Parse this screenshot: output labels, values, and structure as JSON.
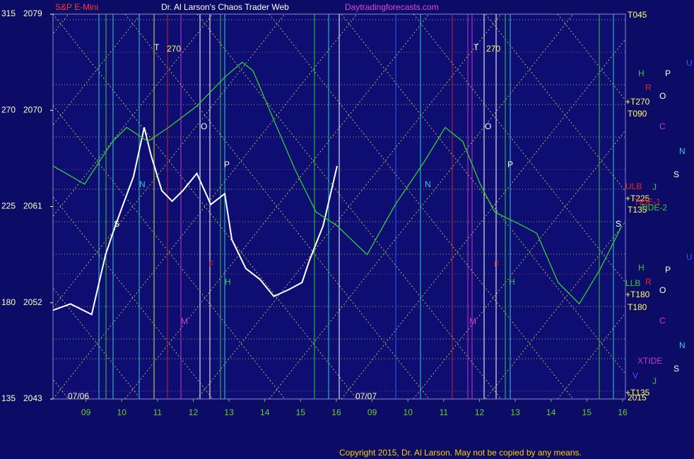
{
  "chart_data": {
    "type": "line",
    "header": {
      "symbol": "S&P E-Mini",
      "title": "Dr. Al Larson's Chaos Trader Web",
      "site": "Daytradingforecasts.com"
    },
    "xlim": [
      0.08,
      16.08
    ],
    "xticks": [
      {
        "value": 1,
        "label": "09"
      },
      {
        "value": 2,
        "label": "10"
      },
      {
        "value": 3,
        "label": "11"
      },
      {
        "value": 4,
        "label": "12"
      },
      {
        "value": 5,
        "label": "13"
      },
      {
        "value": 6,
        "label": "14"
      },
      {
        "value": 7,
        "label": "15"
      },
      {
        "value": 8,
        "label": "16"
      },
      {
        "value": 9,
        "label": "09"
      },
      {
        "value": 10,
        "label": "10"
      },
      {
        "value": 11,
        "label": "11"
      },
      {
        "value": 12,
        "label": "12"
      },
      {
        "value": 13,
        "label": "13"
      },
      {
        "value": 14,
        "label": "14"
      },
      {
        "value": 15,
        "label": "15"
      },
      {
        "value": 16,
        "label": "16"
      }
    ],
    "dates": [
      "07/06",
      "07/07"
    ],
    "ylim": [
      2043,
      2079
    ],
    "yticks": [
      2043,
      2052,
      2061,
      2070,
      2079
    ],
    "y2lim": [
      135,
      315
    ],
    "y2ticks": [
      135,
      180,
      225,
      270,
      315
    ],
    "series": [
      {
        "color": "#ffffff",
        "x": [
          0.08,
          0.57,
          1.16,
          1.55,
          1.75,
          2.04,
          2.33,
          2.63,
          2.82,
          3.12,
          3.41,
          3.71,
          4.1,
          4.49,
          4.88,
          5.08,
          5.47,
          5.86,
          6.25,
          6.65,
          7.04,
          7.24,
          7.63,
          8.02
        ],
        "values": [
          2051.3,
          2051.9,
          2050.9,
          2056.5,
          2058.5,
          2061.2,
          2063.8,
          2068.4,
          2065.8,
          2062.5,
          2061.5,
          2062.5,
          2064.1,
          2061.2,
          2062.2,
          2057.9,
          2055.2,
          2054.2,
          2052.6,
          2053.2,
          2053.9,
          2055.9,
          2059.2,
          2064.8
        ]
      },
      {
        "color": "#33cc33",
        "x": [
          0.08,
          0.96,
          1.75,
          2.14,
          2.73,
          3.31,
          4.1,
          4.88,
          5.37,
          5.67,
          6.25,
          6.84,
          7.43,
          8.02,
          8.86,
          9.65,
          10.44,
          11.04,
          11.53,
          12.02,
          12.42,
          13.21,
          13.6,
          14.2,
          14.79,
          15.38,
          15.98
        ],
        "values": [
          2064.8,
          2063.1,
          2067.1,
          2068.4,
          2067.1,
          2068.4,
          2070.4,
          2073.1,
          2074.5,
          2073.7,
          2069.1,
          2064.5,
          2060.5,
          2059.2,
          2056.5,
          2061.2,
          2065.1,
          2068.4,
          2067.1,
          2063.1,
          2060.5,
          2059.2,
          2058.5,
          2053.9,
          2051.9,
          2055.2,
          2059.2
        ]
      }
    ],
    "annotations": [
      "T045",
      "H",
      "R",
      "O",
      "U",
      "P",
      "+T270",
      "T090",
      "C",
      "N",
      "S",
      "ULB",
      "J",
      "+T225",
      "TIDE-1",
      "T135",
      "TIDE-2",
      "U",
      "H",
      "P",
      "LLB",
      "R",
      "O",
      "+T180",
      "T180",
      "C",
      "N",
      "XTIDE",
      "S",
      "V",
      "J",
      "+T135",
      "2015",
      "270",
      "T",
      "270",
      "T",
      "O",
      "O",
      "P",
      "P",
      "N",
      "N",
      "S",
      "S",
      "F",
      "F",
      "M",
      "M",
      "H",
      "H"
    ],
    "copyright": "Copyright 2015, Dr. Al Larson. May not be copied by any means."
  }
}
